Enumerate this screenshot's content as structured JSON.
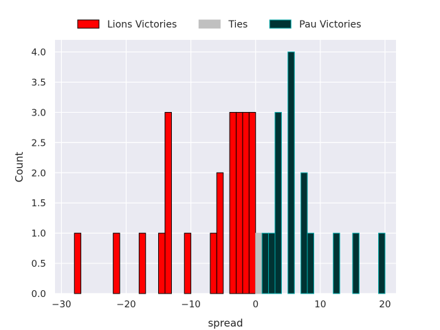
{
  "chart_data": {
    "type": "bar",
    "title": "",
    "xlabel": "spread",
    "ylabel": "Count",
    "xlim": [
      -31,
      21.7
    ],
    "ylim": [
      0,
      4.2
    ],
    "xticks": [
      -30,
      -20,
      -10,
      0,
      10,
      20
    ],
    "xtick_labels": [
      "−30",
      "−20",
      "−10",
      "0",
      "10",
      "20"
    ],
    "yticks": [
      0,
      0.5,
      1,
      1.5,
      2,
      2.5,
      3,
      3.5,
      4
    ],
    "ytick_labels": [
      "0.0",
      "0.5",
      "1.0",
      "1.5",
      "2.0",
      "2.5",
      "3.0",
      "3.5",
      "4.0"
    ],
    "grid": true,
    "background": "#eaeaf2",
    "grid_color": "#ffffff",
    "legend": {
      "placement": "top-center",
      "entries": [
        {
          "label": "Lions Victories",
          "color": "#ff0000",
          "edge": "#000000"
        },
        {
          "label": "Ties",
          "color": "#c0c0c0",
          "edge": "#c0c0c0"
        },
        {
          "label": "Pau Victories",
          "color": "#003333",
          "edge": "#00aaaa"
        }
      ]
    },
    "series": [
      {
        "name": "Lions Victories",
        "color": "#ff0000",
        "edge": "#000000",
        "bin_width": 1,
        "bins": [
          {
            "x": -28,
            "count": 1
          },
          {
            "x": -22,
            "count": 1
          },
          {
            "x": -18,
            "count": 1
          },
          {
            "x": -15,
            "count": 1
          },
          {
            "x": -14,
            "count": 3
          },
          {
            "x": -11,
            "count": 1
          },
          {
            "x": -7,
            "count": 1
          },
          {
            "x": -6,
            "count": 2
          },
          {
            "x": -4,
            "count": 3
          },
          {
            "x": -3,
            "count": 3
          },
          {
            "x": -2,
            "count": 3
          },
          {
            "x": -1,
            "count": 3
          }
        ]
      },
      {
        "name": "Ties",
        "color": "#c0c0c0",
        "edge": "#c0c0c0",
        "bin_width": 1,
        "bins": [
          {
            "x": 0,
            "count": 1
          }
        ]
      },
      {
        "name": "Pau Victories",
        "color": "#003333",
        "edge": "#00aaaa",
        "bin_width": 1,
        "bins": [
          {
            "x": 1,
            "count": 1
          },
          {
            "x": 2,
            "count": 1
          },
          {
            "x": 3,
            "count": 3
          },
          {
            "x": 5,
            "count": 4
          },
          {
            "x": 7,
            "count": 2
          },
          {
            "x": 8,
            "count": 1
          },
          {
            "x": 12,
            "count": 1
          },
          {
            "x": 15,
            "count": 1
          },
          {
            "x": 19,
            "count": 1
          }
        ]
      }
    ]
  }
}
